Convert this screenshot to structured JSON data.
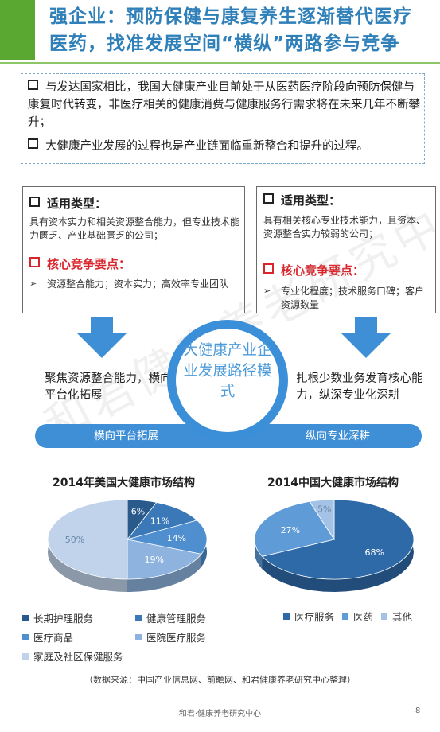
{
  "header": {
    "title_line1": "强企业：预防保健与康复养生逐渐替代医疗",
    "title_line2": "医药，找准发展空间“横纵”两路参与竞争"
  },
  "intro": {
    "bullets": [
      "与发达国家相比，我国大健康产业目前处于从医药医疗阶段向预防保健与康复时代转变，非医疗相关的健康消费与健康服务行需求将在未来几年不断攀升；",
      "大健康产业发展的过程也是产业链面临重新整合和提升的过程。"
    ]
  },
  "left_box": {
    "type_title": "适用类型：",
    "type_text": "具有资本实力和相关资源整合能力，但专业技术能力匮乏、产业基础匮乏的公司；",
    "core_title": "核心竞争要点：",
    "core_arrow": "➢",
    "core_text": "资源整合能力；资本实力；高效率专业团队"
  },
  "right_box": {
    "type_title": "适用类型：",
    "type_text": "具有相关核心专业技术能力，且资本、资源整合实力较弱的公司；",
    "core_title": "核心竞争要点：",
    "core_arrow": "➢",
    "core_text": "专业化程度；技术服务口碑；客户资源数量"
  },
  "left_strategy": "聚焦资源整合能力，横向平台化拓展",
  "right_strategy": "扎根少数业务发育核心能力，纵深专业化深耕",
  "center_text": "大健康产业企业发展路径模式",
  "band": {
    "left": "横向平台拓展",
    "right": "纵向专业深耕"
  },
  "watermark": "和君健康养老研究中心",
  "chart_data": [
    {
      "type": "pie",
      "title": "2014年美国大健康市场结构",
      "categories": [
        "长期护理服务",
        "健康管理服务",
        "医疗商品",
        "医院医疗服务",
        "家庭及社区保健服务"
      ],
      "values": [
        6,
        11,
        14,
        19,
        50
      ],
      "labels": [
        "6%",
        "11%",
        "14%",
        "19%",
        "50%"
      ],
      "colors": [
        "#2a5a8c",
        "#3a78b8",
        "#4f8fd0",
        "#8db3de",
        "#c0d3ea"
      ],
      "legend_position": "bottom"
    },
    {
      "type": "pie",
      "title": "2014中国大健康市场结构",
      "categories": [
        "医疗服务",
        "医药",
        "其他"
      ],
      "values": [
        68,
        27,
        5
      ],
      "labels": [
        "68%",
        "27%",
        "5%"
      ],
      "colors": [
        "#2f6aa8",
        "#5f9bd6",
        "#a3c2e6"
      ],
      "legend_position": "bottom"
    }
  ],
  "source_note": "（数据来源：中国产业信息网、前瞻网、和君健康养老研究中心整理）",
  "footer": {
    "org": "和君·健康养老研究中心",
    "page": "8"
  }
}
